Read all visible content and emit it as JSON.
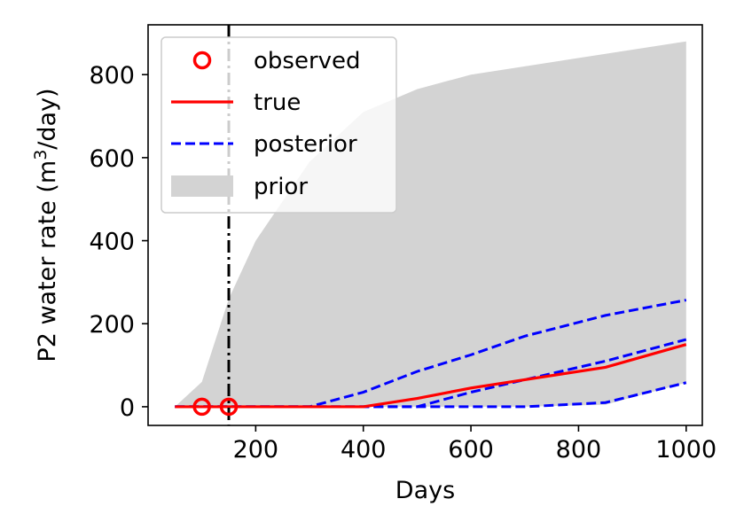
{
  "chart_data": {
    "type": "line",
    "xlabel": "Days",
    "ylabel_prefix": "P2 water rate (m",
    "ylabel_sup": "3",
    "ylabel_suffix": "/day)",
    "xlim": [
      0,
      1030
    ],
    "ylim": [
      -45,
      920
    ],
    "x_ticks": [
      200,
      400,
      600,
      800,
      1000
    ],
    "y_ticks": [
      0,
      200,
      400,
      600,
      800
    ],
    "x_tick_labels": [
      "200",
      "400",
      "600",
      "800",
      "1000"
    ],
    "y_tick_labels": [
      "0",
      "200",
      "400",
      "600",
      "800"
    ],
    "vline_x": 150,
    "colors": {
      "observed": "#ff0000",
      "true": "#ff0000",
      "posterior": "#0000ff",
      "prior": "#d3d3d3",
      "vline": "#000000"
    },
    "legend_position": "upper-left",
    "legend": [
      {
        "key": "observed",
        "label": "observed"
      },
      {
        "key": "true",
        "label": "true"
      },
      {
        "key": "posterior",
        "label": "posterior"
      },
      {
        "key": "prior",
        "label": "prior"
      }
    ],
    "series": {
      "observed": {
        "x": [
          100,
          150
        ],
        "y": [
          0,
          0
        ]
      },
      "true": {
        "x": [
          50,
          150,
          300,
          400,
          500,
          600,
          700,
          850,
          1000
        ],
        "y": [
          0,
          0,
          0,
          0,
          20,
          45,
          65,
          95,
          150
        ]
      },
      "posterior": [
        {
          "x": [
            50,
            150,
            200,
            300,
            400,
            500,
            600,
            700,
            850,
            1000
          ],
          "y": [
            0,
            0,
            0,
            0,
            35,
            85,
            125,
            170,
            220,
            257
          ]
        },
        {
          "x": [
            50,
            150,
            300,
            400,
            500,
            600,
            700,
            850,
            1000
          ],
          "y": [
            0,
            0,
            0,
            0,
            0,
            35,
            65,
            110,
            162
          ]
        },
        {
          "x": [
            50,
            150,
            300,
            400,
            500,
            600,
            700,
            850,
            1000
          ],
          "y": [
            0,
            0,
            0,
            0,
            0,
            0,
            0,
            10,
            58
          ]
        }
      ],
      "prior_band": {
        "x": [
          50,
          100,
          150,
          200,
          300,
          400,
          500,
          600,
          700,
          850,
          1000
        ],
        "upper": [
          0,
          60,
          260,
          400,
          590,
          710,
          765,
          800,
          820,
          850,
          880
        ],
        "lower": [
          0,
          0,
          0,
          0,
          0,
          0,
          0,
          0,
          0,
          5,
          58
        ]
      }
    }
  }
}
